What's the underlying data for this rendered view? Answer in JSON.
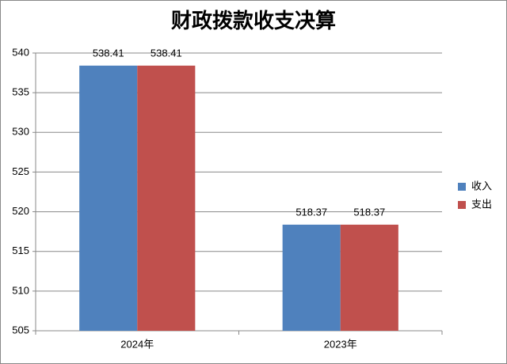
{
  "chart_data": {
    "type": "bar",
    "title": "财政拨款收支决算",
    "categories": [
      "2024年",
      "2023年"
    ],
    "series": [
      {
        "name": "收入",
        "color": "#4f81bd",
        "values": [
          538.41,
          518.37
        ]
      },
      {
        "name": "支出",
        "color": "#c0504d",
        "values": [
          538.41,
          518.37
        ]
      }
    ],
    "ylim": [
      505,
      540
    ],
    "yticks": [
      505,
      510,
      515,
      520,
      525,
      530,
      535,
      540
    ],
    "grid": true,
    "legend": "right"
  }
}
